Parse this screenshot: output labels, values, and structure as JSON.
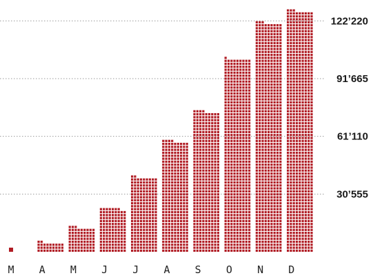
{
  "chart_data": {
    "type": "bar",
    "style": "unit-waffle",
    "categories": [
      "M",
      "A",
      "M",
      "J",
      "J",
      "A",
      "S",
      "O",
      "N",
      "D"
    ],
    "values": [
      425,
      5060,
      13085,
      23165,
      39575,
      58770,
      74560,
      102170,
      121505,
      127765
    ],
    "ylim": [
      0,
      130000
    ],
    "yticks": [
      30555,
      61110,
      91665,
      122220
    ],
    "ytick_labels": [
      "30’555",
      "61’110",
      "91’665",
      "122’220"
    ],
    "grid": true,
    "legend": "none",
    "title": "",
    "xlabel": "",
    "ylabel": "",
    "colors": {
      "unit": "#b01c24",
      "grid": "#9a9a9a"
    }
  }
}
